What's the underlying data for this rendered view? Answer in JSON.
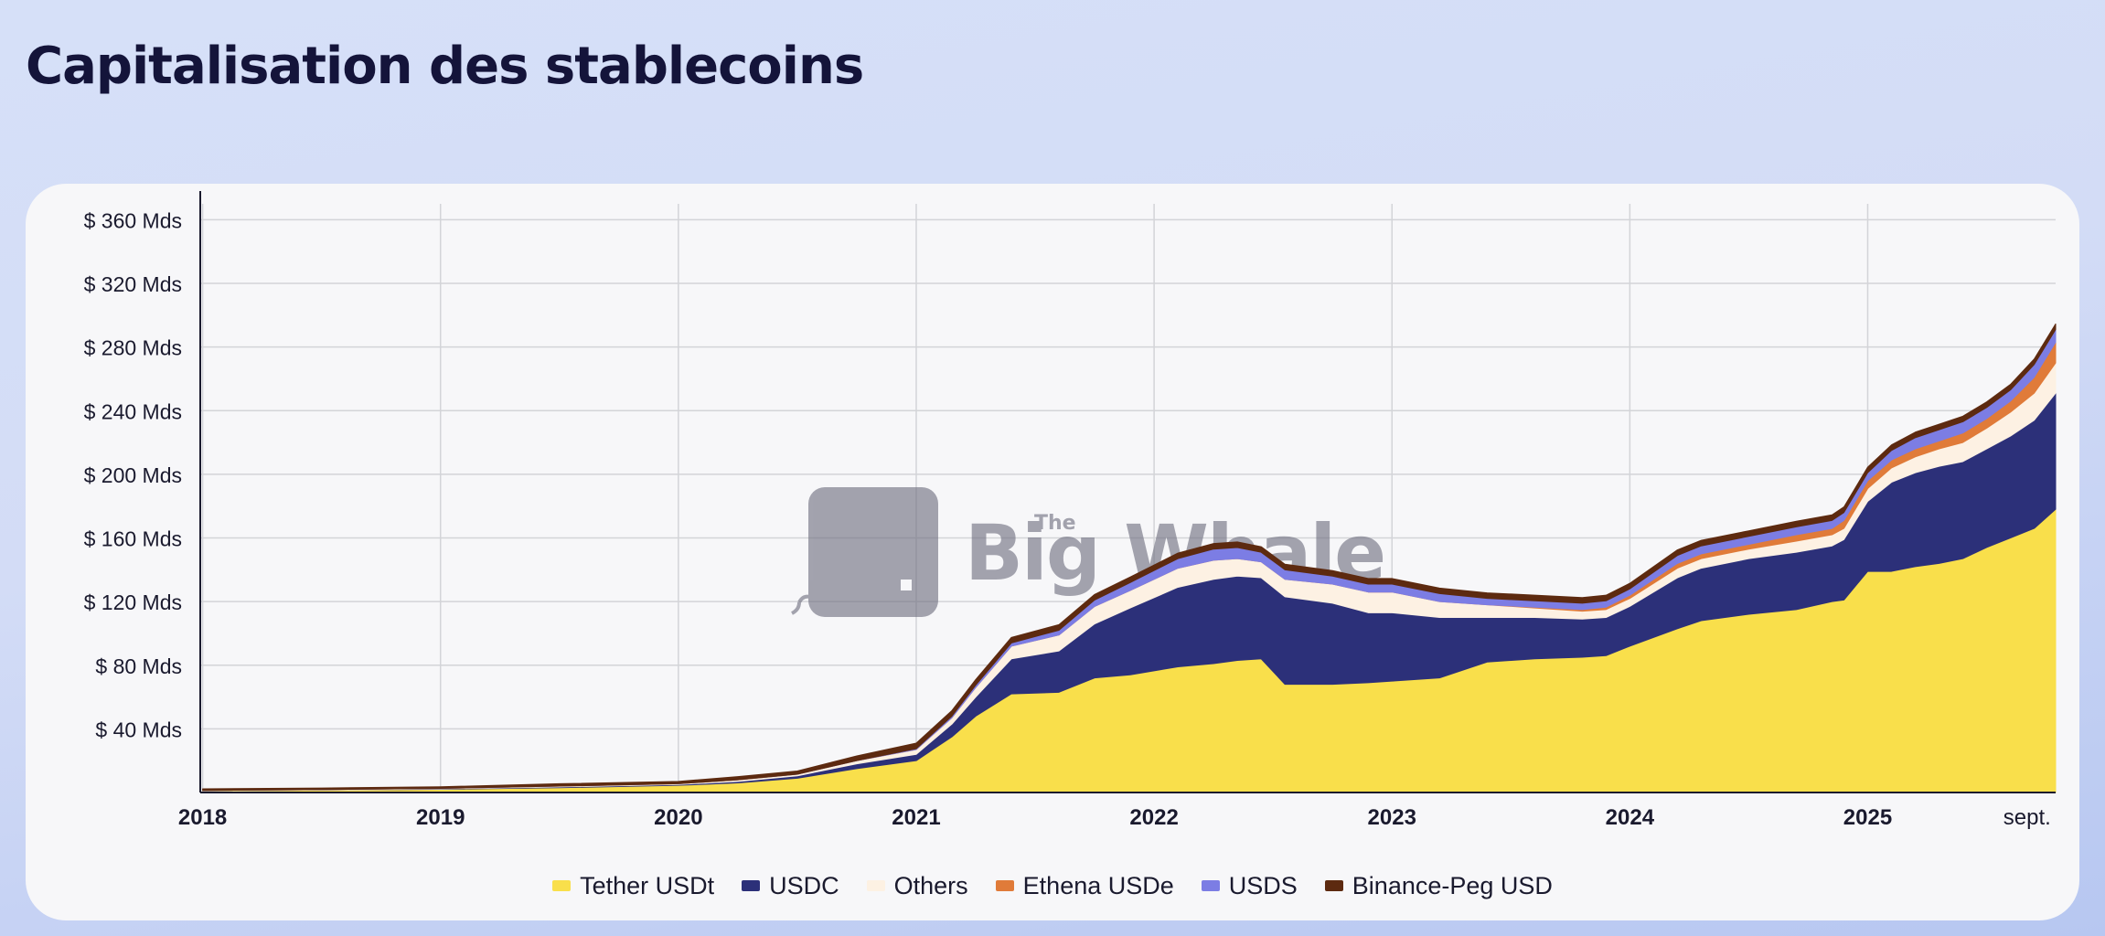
{
  "page": {
    "title": "Capitalisation des stablecoins"
  },
  "watermark": {
    "the": "The",
    "text": "Big Whale"
  },
  "chart_data": {
    "type": "area",
    "stacked": true,
    "title": "Capitalisation des stablecoins",
    "xlabel": "",
    "ylabel": "",
    "ylim": [
      0,
      370
    ],
    "y_ticks": [
      {
        "value": 40,
        "label": "$ 40 Mds"
      },
      {
        "value": 80,
        "label": "$ 80 Mds"
      },
      {
        "value": 120,
        "label": "$ 120 Mds"
      },
      {
        "value": 160,
        "label": "$ 160 Mds"
      },
      {
        "value": 200,
        "label": "$ 200 Mds"
      },
      {
        "value": 240,
        "label": "$ 240 Mds"
      },
      {
        "value": 280,
        "label": "$ 280 Mds"
      },
      {
        "value": 320,
        "label": "$ 320 Mds"
      },
      {
        "value": 360,
        "label": "$ 360 Mds"
      }
    ],
    "x_ticks": [
      {
        "value": 2018.0,
        "label": "2018",
        "bold": true
      },
      {
        "value": 2019.0,
        "label": "2019",
        "bold": true
      },
      {
        "value": 2020.0,
        "label": "2020",
        "bold": true
      },
      {
        "value": 2021.0,
        "label": "2021",
        "bold": true
      },
      {
        "value": 2022.0,
        "label": "2022",
        "bold": true
      },
      {
        "value": 2023.0,
        "label": "2023",
        "bold": true
      },
      {
        "value": 2024.0,
        "label": "2024",
        "bold": true
      },
      {
        "value": 2025.0,
        "label": "2025",
        "bold": true
      },
      {
        "value": 2025.67,
        "label": "sept.",
        "bold": false
      }
    ],
    "xlim": [
      2017.99,
      2025.79
    ],
    "grid": true,
    "legend_position": "bottom-center",
    "x": [
      2018.0,
      2018.5,
      2019.0,
      2019.5,
      2020.0,
      2020.25,
      2020.5,
      2020.75,
      2021.0,
      2021.15,
      2021.25,
      2021.4,
      2021.6,
      2021.75,
      2021.9,
      2022.1,
      2022.25,
      2022.35,
      2022.45,
      2022.55,
      2022.75,
      2022.9,
      2023.0,
      2023.2,
      2023.4,
      2023.6,
      2023.8,
      2023.9,
      2024.0,
      2024.2,
      2024.3,
      2024.5,
      2024.7,
      2024.85,
      2024.9,
      2025.0,
      2025.1,
      2025.2,
      2025.3,
      2025.4,
      2025.5,
      2025.6,
      2025.7,
      2025.79
    ],
    "series": [
      {
        "name": "Tether USDt",
        "color": "#f9df4b",
        "values": [
          1.0,
          1.5,
          2.0,
          3.0,
          4.5,
          6.0,
          9.0,
          15.0,
          20.0,
          35.0,
          48.0,
          62.0,
          63.0,
          72.0,
          74.0,
          79.0,
          81.0,
          83.0,
          84.0,
          68.0,
          68.0,
          69.0,
          70.0,
          72.0,
          82.0,
          84.0,
          85.0,
          86.0,
          92.0,
          103.0,
          108.0,
          112.0,
          115.0,
          120.0,
          121.0,
          139.0,
          139.0,
          142.0,
          144.0,
          147.0,
          154.0,
          160.0,
          166.0,
          178.0
        ]
      },
      {
        "name": "USDC",
        "color": "#2c3079",
        "values": [
          0.0,
          0.0,
          0.3,
          0.5,
          0.5,
          1.0,
          1.5,
          3.0,
          4.0,
          8.0,
          12.0,
          22.0,
          26.0,
          34.0,
          42.0,
          50.0,
          53.0,
          53.0,
          51.0,
          55.0,
          51.0,
          44.0,
          43.0,
          38.0,
          28.0,
          26.0,
          24.0,
          24.0,
          25.0,
          32.0,
          33.0,
          35.0,
          36.0,
          35.0,
          38.0,
          44.0,
          56.0,
          59.0,
          61.0,
          61.0,
          62.0,
          64.0,
          68.0,
          73.0
        ]
      },
      {
        "name": "Others",
        "color": "#fdf1e3",
        "values": [
          0.3,
          0.3,
          0.3,
          0.5,
          0.5,
          1.0,
          1.0,
          2.0,
          3.0,
          4.0,
          6.0,
          8.0,
          10.0,
          11.0,
          11.0,
          12.0,
          12.0,
          11.0,
          10.0,
          11.0,
          12.0,
          13.0,
          13.0,
          10.0,
          8.0,
          6.0,
          5.0,
          5.0,
          5.0,
          6.0,
          6.0,
          6.0,
          7.0,
          7.0,
          7.0,
          8.0,
          9.0,
          10.0,
          11.0,
          12.0,
          13.0,
          15.0,
          17.0,
          19.0
        ]
      },
      {
        "name": "Ethena USDe",
        "color": "#e07b39",
        "values": [
          0.0,
          0.0,
          0.0,
          0.0,
          0.0,
          0.0,
          0.0,
          0.0,
          0.0,
          0.0,
          0.0,
          0.0,
          0.0,
          0.0,
          0.0,
          0.0,
          0.0,
          0.0,
          0.0,
          0.0,
          0.0,
          0.0,
          0.0,
          0.0,
          0.0,
          0.5,
          1.0,
          1.5,
          2.0,
          3.0,
          3.0,
          3.0,
          4.0,
          4.0,
          5.0,
          5.0,
          5.0,
          5.0,
          5.0,
          6.0,
          6.0,
          7.0,
          10.0,
          13.0
        ]
      },
      {
        "name": "USDS",
        "color": "#7c7de4",
        "values": [
          0.0,
          0.0,
          0.0,
          0.0,
          0.0,
          0.0,
          0.0,
          0.0,
          0.5,
          1.0,
          1.5,
          2.0,
          3.0,
          4.0,
          5.0,
          6.0,
          7.0,
          7.0,
          6.0,
          6.0,
          5.0,
          5.0,
          5.0,
          5.0,
          4.0,
          4.0,
          4.0,
          4.0,
          4.0,
          5.0,
          5.0,
          5.0,
          5.0,
          5.0,
          5.0,
          5.0,
          6.0,
          7.0,
          7.0,
          7.0,
          7.0,
          7.0,
          8.0,
          8.0
        ]
      },
      {
        "name": "Binance-Peg USD",
        "color": "#5d2a10",
        "values": [
          1.0,
          1.0,
          1.0,
          1.5,
          1.5,
          2.0,
          2.0,
          3.0,
          3.5,
          3.5,
          3.5,
          3.5,
          3.5,
          3.5,
          3.5,
          3.5,
          3.5,
          3.5,
          3.5,
          3.5,
          3.5,
          3.5,
          3.5,
          3.5,
          3.5,
          3.5,
          3.5,
          3.5,
          3.5,
          3.5,
          3.5,
          3.5,
          3.5,
          3.5,
          3.5,
          3.5,
          3.5,
          3.5,
          3.5,
          3.5,
          3.5,
          3.5,
          3.5,
          3.5
        ]
      }
    ]
  }
}
